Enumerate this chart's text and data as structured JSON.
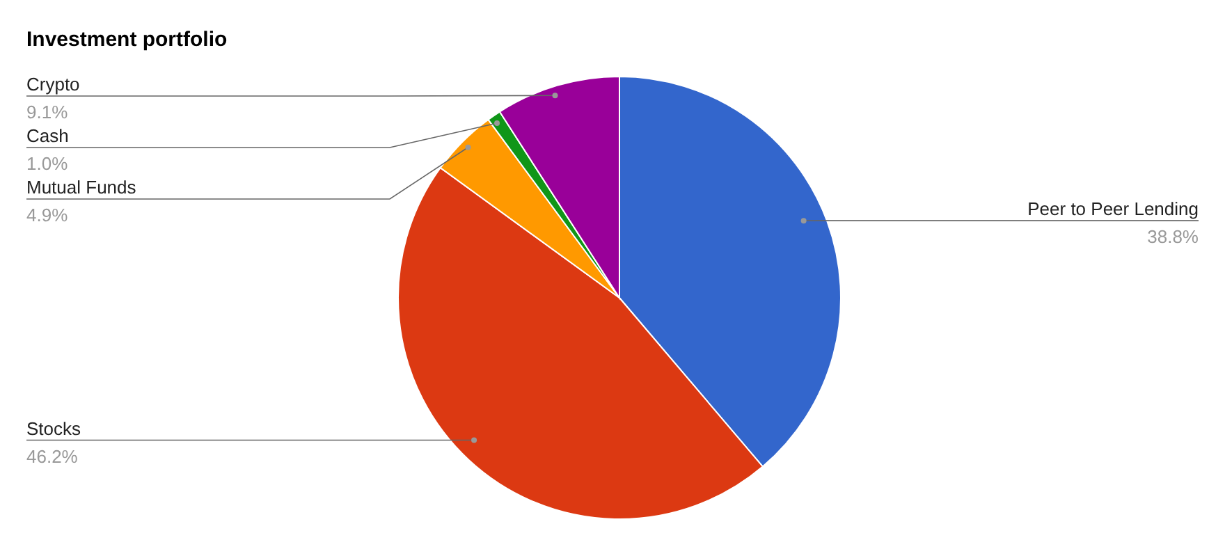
{
  "chart_data": {
    "type": "pie",
    "title": "Investment portfolio",
    "categories": [
      "Peer to Peer Lending",
      "Stocks",
      "Mutual Funds",
      "Cash",
      "Crypto"
    ],
    "values": [
      38.8,
      46.2,
      4.9,
      1.0,
      9.1
    ],
    "value_labels": [
      "38.8%",
      "46.2%",
      "4.9%",
      "1.0%",
      "9.1%"
    ],
    "colors": [
      "#3366cc",
      "#dc3912",
      "#ff9900",
      "#109618",
      "#990099"
    ],
    "legend": false
  }
}
